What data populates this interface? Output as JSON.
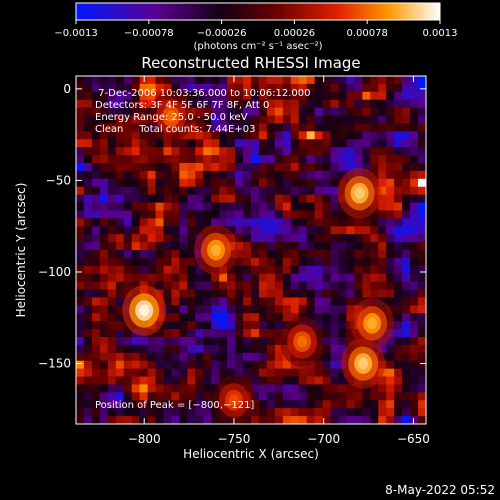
{
  "chart_data": {
    "type": "heatmap",
    "title": "Reconstructed RHESSI Image",
    "xlabel": "Heliocentric X (arcsec)",
    "ylabel": "Heliocentric Y (arcsec)",
    "xlim": [
      -838,
      -643
    ],
    "ylim": [
      -183,
      7
    ],
    "x_ticks": [
      -800,
      -750,
      -700,
      -650
    ],
    "x_tick_labels": [
      "−800",
      "−750",
      "−700",
      "−650"
    ],
    "y_ticks": [
      0,
      -50,
      -100,
      -150
    ],
    "y_tick_labels": [
      "0",
      "−50",
      "−100",
      "−150"
    ],
    "colorbar": {
      "range": [
        -0.0013,
        0.0013
      ],
      "ticks": [
        -0.0013,
        -0.00078,
        -0.00026,
        0.00026,
        0.00078,
        0.0013
      ],
      "tick_labels": [
        "−0.0013",
        "−0.00078",
        "−0.00026",
        "0.00026",
        "0.00078",
        "0.0013"
      ],
      "units": "(photons cm⁻² s⁻¹ asec⁻²)"
    },
    "info_lines": [
      " 7-Dec-2006 10:03:36.000 to 10:06:12.000",
      "Detectors: 3F 4F 5F 6F 7F 8F, Att 0",
      "Energy Range: 25.0 - 50.0 keV",
      "Clean     Total counts: 7.44E+03"
    ],
    "peak_label": "Position of Peak = [−800,−121]",
    "peak": {
      "x": -800,
      "y": -121
    },
    "sources": [
      {
        "x": -800,
        "y": -121,
        "value": 0.00125
      },
      {
        "x": -760,
        "y": -88,
        "value": 0.001
      },
      {
        "x": -680,
        "y": -57,
        "value": 0.0011
      },
      {
        "x": -678,
        "y": -150,
        "value": 0.0011
      },
      {
        "x": -673,
        "y": -128,
        "value": 0.001
      },
      {
        "x": -785,
        "y": -15,
        "value": 0.0008
      },
      {
        "x": -712,
        "y": -138,
        "value": 0.0008
      },
      {
        "x": -750,
        "y": -170,
        "value": 0.0007
      }
    ]
  },
  "footer": {
    "timestamp": "8-May-2022 05:52"
  },
  "colors": {
    "background": "#000000",
    "text": "#ffffff"
  }
}
